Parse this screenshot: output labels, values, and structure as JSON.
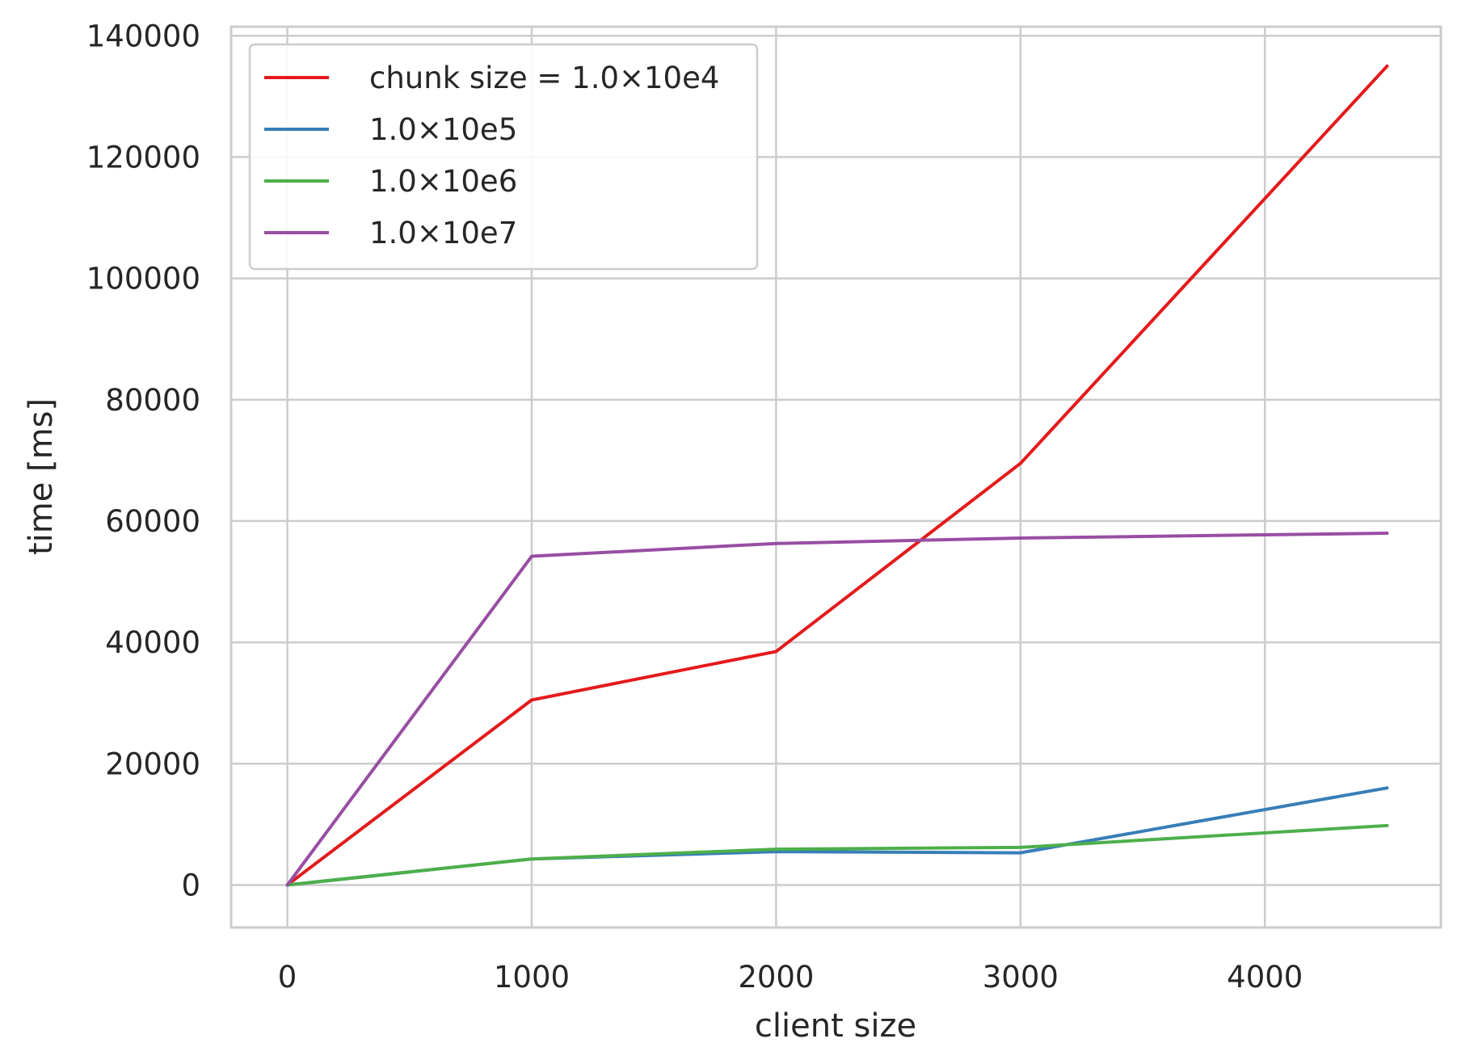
{
  "chart_data": {
    "type": "line",
    "xlabel": "client size",
    "ylabel": "time [ms]",
    "xlim": [
      -230,
      4720
    ],
    "ylim": [
      -7000,
      141500
    ],
    "xticks": [
      0,
      1000,
      2000,
      3000,
      4000
    ],
    "yticks": [
      0,
      20000,
      40000,
      60000,
      80000,
      100000,
      120000,
      140000
    ],
    "grid": true,
    "legend_position": "top-left",
    "x": [
      0,
      1000,
      2000,
      3000,
      4500
    ],
    "series": [
      {
        "name": "chunk size = 1.0×10e4",
        "color": "#e41a1c",
        "values": [
          0,
          30500,
          38500,
          69500,
          135000
        ]
      },
      {
        "name": "1.0×10e5",
        "color": "#377eb8",
        "values": [
          0,
          4300,
          5500,
          5300,
          16000
        ]
      },
      {
        "name": "1.0×10e6",
        "color": "#4daf4a",
        "values": [
          0,
          4300,
          5900,
          6200,
          9800
        ]
      },
      {
        "name": "1.0×10e7",
        "color": "#984ea3",
        "values": [
          0,
          54200,
          56300,
          57200,
          58000
        ]
      }
    ]
  }
}
